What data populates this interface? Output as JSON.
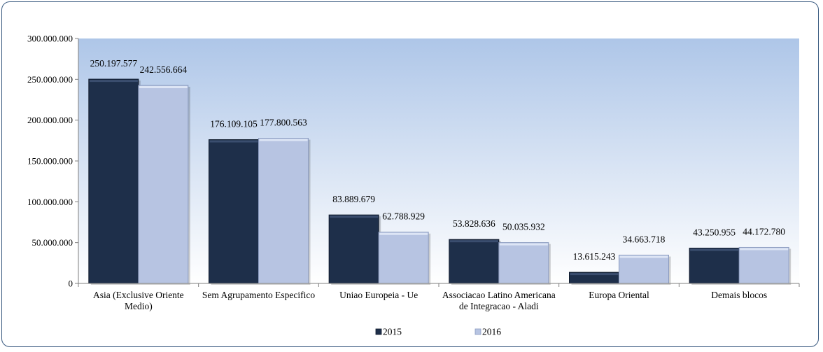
{
  "colors": {
    "series_2015": "#1e2f4a",
    "series_2016": "#b7c4e2",
    "plot_bg_top": "#aec6e8",
    "plot_bg_bottom": "#ffffff",
    "frame": "#3a5a80"
  },
  "chart_data": {
    "type": "bar",
    "title": "",
    "xlabel": "",
    "ylabel": "",
    "ylim": [
      0,
      300000000
    ],
    "yticks": [
      0,
      50000000,
      100000000,
      150000000,
      200000000,
      250000000,
      300000000
    ],
    "ytick_labels": [
      "0",
      "50.000.000",
      "100.000.000",
      "150.000.000",
      "200.000.000",
      "250.000.000",
      "300.000.000"
    ],
    "grid": false,
    "legend_position": "bottom",
    "categories": [
      "Asia (Exclusive Oriente Medio)",
      "Sem Agrupamento Especifico",
      "Uniao Europeia - Ue",
      "Associacao Latino Americana de Integracao - Aladi",
      "Europa Oriental",
      "Demais blocos"
    ],
    "category_lines": [
      [
        "Asia (Exclusive Oriente",
        "Medio)"
      ],
      [
        "Sem Agrupamento Especifico"
      ],
      [
        "Uniao Europeia - Ue"
      ],
      [
        "Associacao Latino Americana",
        "de Integracao - Aladi"
      ],
      [
        "Europa Oriental"
      ],
      [
        "Demais blocos"
      ]
    ],
    "series": [
      {
        "name": "2015",
        "values": [
          250197577,
          176109105,
          83889679,
          53828636,
          13615243,
          43250955
        ],
        "labels": [
          "250.197.577",
          "176.109.105",
          "83.889.679",
          "53.828.636",
          "13.615.243",
          "43.250.955"
        ]
      },
      {
        "name": "2016",
        "values": [
          242556664,
          177800563,
          62788929,
          50035932,
          34663718,
          44172780
        ],
        "labels": [
          "242.556.664",
          "177.800.563",
          "62.788.929",
          "50.035.932",
          "34.663.718",
          "44.172.780"
        ]
      }
    ]
  }
}
